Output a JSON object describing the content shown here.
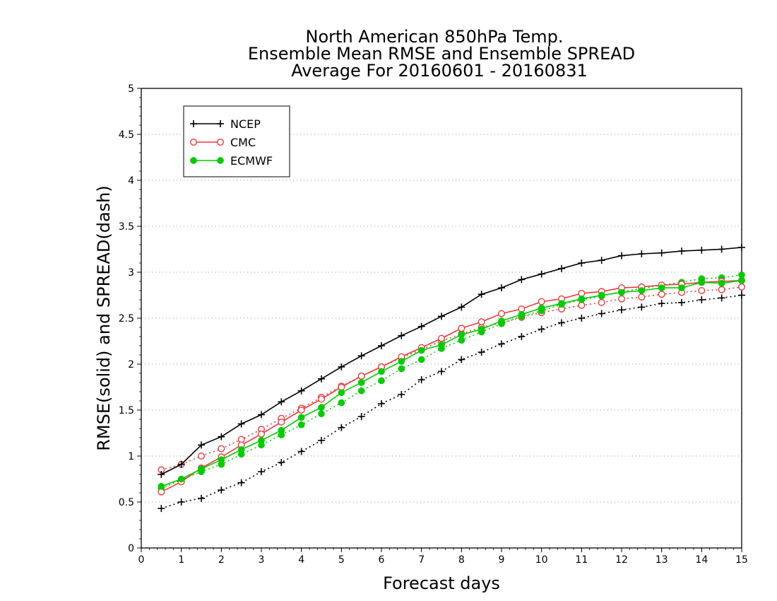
{
  "chart_data": {
    "type": "line",
    "title": [
      "North American 850hPa Temp.",
      "Ensemble Mean RMSE and Ensemble SPREAD",
      "Average For 20160601 - 20160831"
    ],
    "xlabel": "Forecast days",
    "ylabel": "RMSE(solid) and SPREAD(dash)",
    "xlim": [
      0,
      15
    ],
    "ylim": [
      0,
      5
    ],
    "xticks": [
      0,
      1,
      2,
      3,
      4,
      5,
      6,
      7,
      8,
      9,
      10,
      11,
      12,
      13,
      14,
      15
    ],
    "yticks": [
      0,
      0.5,
      1,
      1.5,
      2,
      2.5,
      3,
      3.5,
      4,
      4.5,
      5
    ],
    "ytick_labels": [
      "0",
      "0.5",
      "1",
      "1.5",
      "2",
      "2.5",
      "3",
      "3.5",
      "4",
      "4.5",
      "5"
    ],
    "grid": "horizontal-dotted",
    "legend_position": "top-left",
    "x": [
      0.5,
      1,
      1.5,
      2,
      2.5,
      3,
      3.5,
      4,
      4.5,
      5,
      5.5,
      6,
      6.5,
      7,
      7.5,
      8,
      8.5,
      9,
      9.5,
      10,
      10.5,
      11,
      11.5,
      12,
      12.5,
      13,
      13.5,
      14,
      14.5,
      15
    ],
    "series": [
      {
        "name": "NCEP",
        "metric": "RMSE",
        "line": "solid",
        "color": "#000000",
        "marker": "plus",
        "values": [
          0.8,
          0.91,
          1.12,
          1.21,
          1.35,
          1.45,
          1.59,
          1.71,
          1.84,
          1.97,
          2.09,
          2.2,
          2.31,
          2.41,
          2.52,
          2.62,
          2.76,
          2.83,
          2.92,
          2.98,
          3.04,
          3.1,
          3.13,
          3.18,
          3.2,
          3.21,
          3.23,
          3.24,
          3.25,
          3.27
        ]
      },
      {
        "name": "NCEP",
        "metric": "SPREAD",
        "line": "dash",
        "color": "#000000",
        "marker": "plus",
        "values": [
          0.43,
          0.5,
          0.54,
          0.63,
          0.71,
          0.83,
          0.93,
          1.05,
          1.17,
          1.31,
          1.43,
          1.57,
          1.67,
          1.83,
          1.92,
          2.05,
          2.13,
          2.22,
          2.3,
          2.38,
          2.45,
          2.5,
          2.55,
          2.59,
          2.62,
          2.66,
          2.67,
          2.7,
          2.72,
          2.75
        ]
      },
      {
        "name": "CMC",
        "metric": "RMSE",
        "line": "solid",
        "color": "#ee3b3b",
        "marker": "open-circle",
        "values": [
          0.61,
          0.72,
          0.87,
          0.99,
          1.12,
          1.24,
          1.37,
          1.5,
          1.62,
          1.75,
          1.87,
          1.97,
          2.08,
          2.18,
          2.28,
          2.39,
          2.46,
          2.55,
          2.6,
          2.68,
          2.71,
          2.77,
          2.79,
          2.83,
          2.84,
          2.86,
          2.87,
          2.89,
          2.9,
          2.91
        ]
      },
      {
        "name": "CMC",
        "metric": "SPREAD",
        "line": "dash",
        "color": "#ee3b3b",
        "marker": "open-circle",
        "values": [
          0.85,
          0.91,
          1.0,
          1.08,
          1.18,
          1.29,
          1.41,
          1.52,
          1.64,
          1.76,
          1.87,
          1.97,
          2.07,
          2.16,
          2.25,
          2.33,
          2.4,
          2.45,
          2.51,
          2.56,
          2.6,
          2.64,
          2.67,
          2.71,
          2.73,
          2.76,
          2.78,
          2.8,
          2.81,
          2.84
        ]
      },
      {
        "name": "ECMWF",
        "metric": "RMSE",
        "line": "solid",
        "color": "#00cc00",
        "marker": "filled-circle",
        "values": [
          0.67,
          0.75,
          0.86,
          0.96,
          1.07,
          1.17,
          1.28,
          1.42,
          1.53,
          1.69,
          1.8,
          1.92,
          2.03,
          2.15,
          2.21,
          2.32,
          2.38,
          2.47,
          2.54,
          2.61,
          2.66,
          2.71,
          2.75,
          2.78,
          2.8,
          2.83,
          2.83,
          2.89,
          2.88,
          2.91
        ]
      },
      {
        "name": "ECMWF",
        "metric": "SPREAD",
        "line": "dash",
        "color": "#00cc00",
        "marker": "filled-circle",
        "values": [
          0.65,
          0.74,
          0.83,
          0.91,
          1.02,
          1.12,
          1.23,
          1.34,
          1.46,
          1.58,
          1.71,
          1.82,
          1.95,
          2.05,
          2.17,
          2.26,
          2.35,
          2.44,
          2.52,
          2.58,
          2.65,
          2.7,
          2.74,
          2.79,
          2.82,
          2.86,
          2.89,
          2.93,
          2.94,
          2.97
        ]
      }
    ]
  }
}
